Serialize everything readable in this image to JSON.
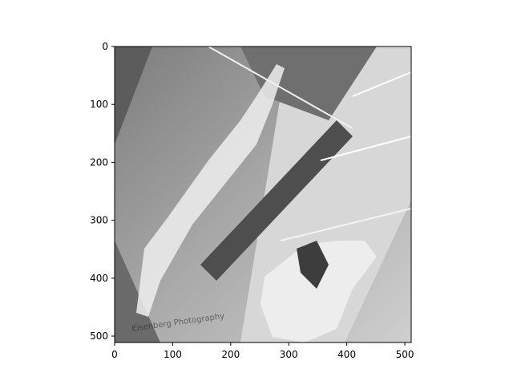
{
  "chart_data": {
    "type": "image",
    "title": "",
    "xlabel": "",
    "ylabel": "",
    "colormap": "gray (inverted-looking photo)",
    "image_extent": {
      "x": [
        0,
        511
      ],
      "y": [
        511,
        0
      ]
    },
    "xlim": [
      0,
      511
    ],
    "ylim": [
      511,
      0
    ],
    "y_axis_inverted": true,
    "grid": false,
    "legend": "none",
    "x_ticks": [
      0,
      100,
      200,
      300,
      400,
      500
    ],
    "y_ticks": [
      0,
      100,
      200,
      300,
      400,
      500
    ],
    "x_tick_labels": [
      "0",
      "100",
      "200",
      "300",
      "400",
      "500"
    ],
    "y_tick_labels": [
      "0",
      "100",
      "200",
      "300",
      "400",
      "500"
    ],
    "watermark_text": "Eisenberg Photography",
    "colors": {
      "frame": "#000000",
      "background": "#ffffff"
    }
  }
}
